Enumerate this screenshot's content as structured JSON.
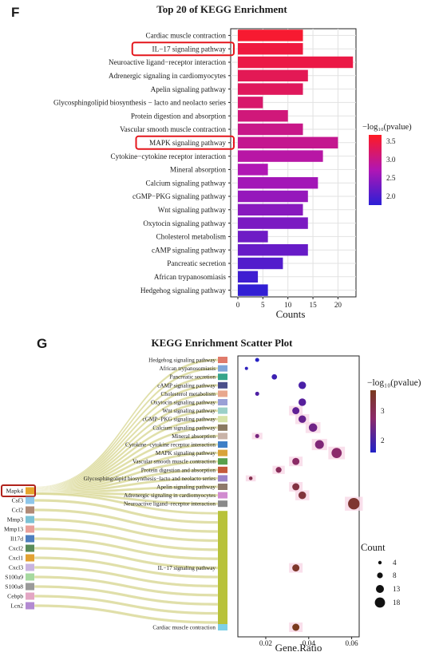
{
  "panel_f": {
    "letter": "F",
    "title": "Top 20 of KEGG Enrichment",
    "xlabel": "Counts",
    "legend_title": "−log₁₀(pvalue)",
    "legend_ticks": [
      "3.5",
      "3.0",
      "2.5",
      "2.0"
    ]
  },
  "panel_g": {
    "letter": "G",
    "title": "KEGG Enrichment Scatter Plot",
    "xlabel": "Gene.Ratio",
    "color_legend_title": "−log₁₀(pvalue)",
    "color_legend_ticks": [
      "3",
      "2"
    ],
    "size_legend_title": "Count",
    "size_legend_ticks": [
      "4",
      "8",
      "13",
      "18"
    ]
  },
  "colors": {
    "low": "#2b1fd6",
    "high": "#ff1a22",
    "highlight_box": "#e4161c",
    "gene_box": "#b0231c",
    "sankey_band": "#dad99a",
    "grid": "#e2e2e2"
  },
  "chart_data": [
    {
      "type": "bar",
      "orientation": "horizontal",
      "title": "Top 20 of KEGG Enrichment",
      "xlabel": "Counts",
      "xlim": [
        0,
        23.6
      ],
      "xticks": [
        "0",
        "5",
        "10",
        "15",
        "20"
      ],
      "highlighted": [
        "IL−17 signaling pathway",
        "MAPK signaling pathway"
      ],
      "categories": [
        "Cardiac muscle contraction",
        "IL−17 signaling pathway",
        "Neuroactive ligand−receptor interaction",
        "Adrenergic signaling in cardiomyocytes",
        "Apelin signaling pathway",
        "Glycosphingolipid biosynthesis − lacto and neolacto series",
        "Protein digestion and absorption",
        "Vascular smooth muscle contraction",
        "MAPK signaling pathway",
        "Cytokine−cytokine receptor interaction",
        "Mineral absorption",
        "Calcium signaling pathway",
        "cGMP−PKG signaling pathway",
        "Wnt signaling pathway",
        "Oxytocin signaling pathway",
        "Cholesterol metabolism",
        "cAMP signaling pathway",
        "Pancreatic secretion",
        "African trypanosomiasis",
        "Hedgehog signaling pathway"
      ],
      "values": [
        13,
        13,
        23,
        14,
        13,
        5,
        10,
        13,
        20,
        17,
        6,
        16,
        14,
        13,
        14,
        6,
        14,
        9,
        4,
        6
      ],
      "neg_log10_pvalue": [
        3.6,
        3.5,
        3.45,
        3.35,
        3.3,
        3.2,
        3.1,
        3.0,
        2.95,
        2.8,
        2.7,
        2.6,
        2.5,
        2.4,
        2.3,
        2.2,
        2.15,
        2.0,
        1.85,
        1.75
      ],
      "color_range": [
        1.7,
        3.7
      ]
    },
    {
      "type": "scatter",
      "title": "KEGG Enrichment Scatter Plot",
      "xlabel": "Gene.Ratio",
      "xlim": [
        0.007,
        0.0635
      ],
      "xticks": [
        0.02,
        0.04,
        0.06
      ],
      "xticklabels": [
        "0.02",
        "0.04",
        "0.06"
      ],
      "categories": [
        "Hedgehog signaling pathway",
        "African trypanosomiasis",
        "Pancreatic secretion",
        "cAMP signaling pathway",
        "Cholesterol metabolism",
        "Oxytocin signaling pathway",
        "Wnt signaling pathway",
        "cGMP−PKG signaling pathway",
        "Calcium signaling pathway",
        "Mineral absorption",
        "Cytokine−cytokine receptor interaction",
        "MAPK signaling pathway",
        "Vascular smooth muscle contraction",
        "Protein digestion and absorption",
        "Glycosphingolipid biosynthesis−lacto and neolacto series",
        "Apelin signaling pathway",
        "Adrenergic signaling in cardiomyocytes",
        "Neuroactive ligand−receptor interaction",
        "IL−17 signaling pathway",
        "Cardiac muscle contraction"
      ],
      "gene_ratio": [
        0.016,
        0.011,
        0.024,
        0.037,
        0.016,
        0.037,
        0.034,
        0.037,
        0.042,
        0.016,
        0.045,
        0.053,
        0.034,
        0.026,
        0.013,
        0.034,
        0.037,
        0.061,
        0.034,
        0.034
      ],
      "count": [
        6,
        4,
        9,
        14,
        6,
        14,
        13,
        14,
        16,
        6,
        17,
        20,
        13,
        10,
        5,
        13,
        14,
        23,
        13,
        13
      ],
      "neg_log10_pvalue": [
        1.75,
        1.85,
        2.0,
        2.15,
        2.2,
        2.3,
        2.4,
        2.5,
        2.6,
        2.7,
        2.8,
        2.95,
        3.0,
        3.1,
        3.2,
        3.3,
        3.35,
        3.45,
        3.5,
        3.6
      ],
      "color_range": [
        1.7,
        3.6
      ],
      "genes": [
        "Mapk4",
        "Csf3",
        "Ccl2",
        "Mmp3",
        "Mmp13",
        "Il17d",
        "Cxcl2",
        "Cxcl1",
        "Cxcl3",
        "S100a9",
        "S100a8",
        "Cebpb",
        "Lcn2"
      ],
      "gene_colors": [
        "#e6a52b",
        "#8ec6ea",
        "#b08a77",
        "#7cc2d5",
        "#e9a09a",
        "#4f7fbf",
        "#5a8c5a",
        "#e3a233",
        "#c9b4e0",
        "#a6d9a0",
        "#9a9a9a",
        "#e3a6c4",
        "#b28ad2"
      ],
      "highlighted_gene": "Mapk4",
      "sankey_links": {
        "Mapk4": [
          "Hedgehog signaling pathway",
          "African trypanosomiasis",
          "Pancreatic secretion",
          "cAMP signaling pathway",
          "Cholesterol metabolism",
          "Oxytocin signaling pathway",
          "Wnt signaling pathway",
          "cGMP−PKG signaling pathway",
          "Calcium signaling pathway",
          "Mineral absorption",
          "Cytokine−cytokine receptor interaction",
          "MAPK signaling pathway",
          "Vascular smooth muscle contraction",
          "Protein digestion and absorption",
          "Glycosphingolipid biosynthesis−lacto and neolacto series",
          "Apelin signaling pathway",
          "Adrenergic signaling in cardiomyocytes",
          "Neuroactive ligand−receptor interaction",
          "IL−17 signaling pathway"
        ],
        "Csf3": [
          "IL−17 signaling pathway"
        ],
        "Ccl2": [
          "IL−17 signaling pathway"
        ],
        "Mmp3": [
          "IL−17 signaling pathway"
        ],
        "Mmp13": [
          "IL−17 signaling pathway"
        ],
        "Il17d": [
          "IL−17 signaling pathway"
        ],
        "Cxcl2": [
          "IL−17 signaling pathway"
        ],
        "Cxcl1": [
          "IL−17 signaling pathway"
        ],
        "Cxcl3": [
          "IL−17 signaling pathway"
        ],
        "S100a9": [
          "IL−17 signaling pathway"
        ],
        "S100a8": [
          "IL−17 signaling pathway"
        ],
        "Cebpb": [
          "IL−17 signaling pathway"
        ],
        "Lcn2": [
          "IL−17 signaling pathway"
        ]
      },
      "pathway_colors": [
        "#e07b6b",
        "#7fa6d9",
        "#36a58b",
        "#4a4f8a",
        "#e8a78e",
        "#9aa0d6",
        "#9bd0c8",
        "#d7e3a8",
        "#8a7a62",
        "#c9b3a8",
        "#3f7fc6",
        "#d9a33a",
        "#58a04c",
        "#c45a3a",
        "#9c84c8",
        "#8f7a6b",
        "#d18bd0",
        "#8a8a8a",
        "#b8c23a",
        "#7ed0e8"
      ]
    }
  ]
}
